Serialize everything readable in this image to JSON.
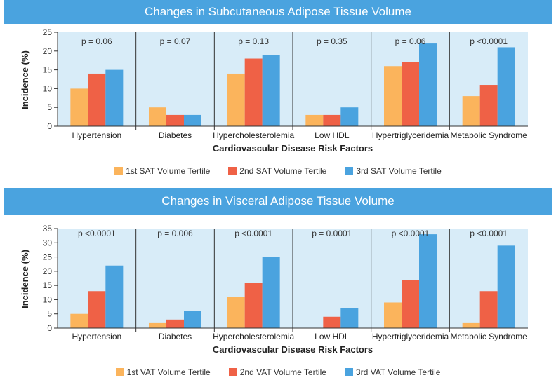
{
  "colors": {
    "panel_bg": "#d8ecf8",
    "tertile_1": "#fbb45c",
    "tertile_2": "#ef6146",
    "tertile_3": "#4aa3df",
    "banner": "#4aa3df"
  },
  "chart_data": [
    {
      "type": "bar",
      "title": "Changes in Subcutaneous Adipose Tissue Volume",
      "xlabel": "Cardiovascular Disease Risk Factors",
      "ylabel": "Incidence (%)",
      "ylim": [
        0,
        25
      ],
      "yticks": [
        "0",
        "5",
        "10",
        "15",
        "20",
        "25"
      ],
      "grid": false,
      "legend_position": "bottom",
      "categories": [
        "Hypertension",
        "Diabetes",
        "Hypercholesterolemia",
        "Low HDL",
        "Hypertriglyceridemia",
        "Metabolic Syndrome"
      ],
      "p_values": [
        "p = 0.06",
        "p = 0.07",
        "p = 0.13",
        "p = 0.35",
        "p = 0.06",
        "p <0.0001"
      ],
      "series": [
        {
          "name": "1st SAT Volume Tertile",
          "color": "#fbb45c",
          "values": [
            10,
            5,
            14,
            3,
            16,
            8
          ]
        },
        {
          "name": "2nd SAT Volume Tertile",
          "color": "#ef6146",
          "values": [
            14,
            3,
            18,
            3,
            17,
            11
          ]
        },
        {
          "name": "3rd SAT Volume Tertile",
          "color": "#4aa3df",
          "values": [
            15,
            3,
            19,
            5,
            22,
            21
          ]
        }
      ]
    },
    {
      "type": "bar",
      "title": "Changes in Visceral Adipose Tissue Volume",
      "xlabel": "Cardiovascular Disease Risk Factors",
      "ylabel": "Incidence (%)",
      "ylim": [
        0,
        35
      ],
      "yticks": [
        "0",
        "5",
        "10",
        "15",
        "20",
        "25",
        "30",
        "35"
      ],
      "grid": false,
      "legend_position": "bottom",
      "categories": [
        "Hypertension",
        "Diabetes",
        "Hypercholesterolemia",
        "Low HDL",
        "Hypertriglyceridemia",
        "Metabolic Syndrome"
      ],
      "p_values": [
        "p <0.0001",
        "p = 0.006",
        "p <0.0001",
        "p = 0.0001",
        "p <0.0001",
        "p <0.0001"
      ],
      "series": [
        {
          "name": "1st VAT Volume Tertile",
          "color": "#fbb45c",
          "values": [
            5,
            2,
            11,
            0,
            9,
            2
          ]
        },
        {
          "name": "2nd VAT Volume Tertile",
          "color": "#ef6146",
          "values": [
            13,
            3,
            16,
            4,
            17,
            13
          ]
        },
        {
          "name": "3rd VAT Volume Tertile",
          "color": "#4aa3df",
          "values": [
            22,
            6,
            25,
            7,
            33,
            29
          ]
        }
      ]
    }
  ]
}
